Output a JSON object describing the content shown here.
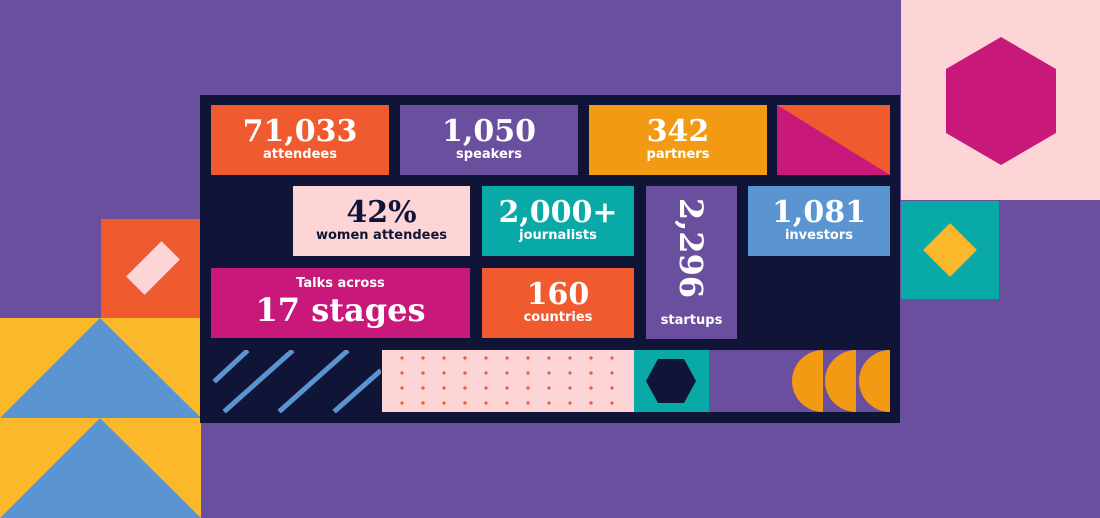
{
  "colors": {
    "background": "#6a4f9f",
    "panel": "#101537",
    "orange": "#f05a2f",
    "purple": "#6a4f9f",
    "amber": "#f39a14",
    "magenta": "#c8197a",
    "pink": "#fdd5d6",
    "teal": "#08a9a6",
    "blue": "#5a95d2",
    "yellow": "#fbb82b"
  },
  "stats": {
    "attendees": {
      "value": "71,033",
      "label": "attendees"
    },
    "speakers": {
      "value": "1,050",
      "label": "speakers"
    },
    "partners": {
      "value": "342",
      "label": "partners"
    },
    "women": {
      "value": "42%",
      "label": "women attendees"
    },
    "journalists": {
      "value": "2,000+",
      "label": "journalists"
    },
    "startups": {
      "value": "2,296",
      "label": "startups"
    },
    "investors": {
      "value": "1,081",
      "label": "investors"
    },
    "stages": {
      "prefix": "Talks across",
      "value": "17 stages"
    },
    "countries": {
      "value": "160",
      "label": "countries"
    }
  }
}
